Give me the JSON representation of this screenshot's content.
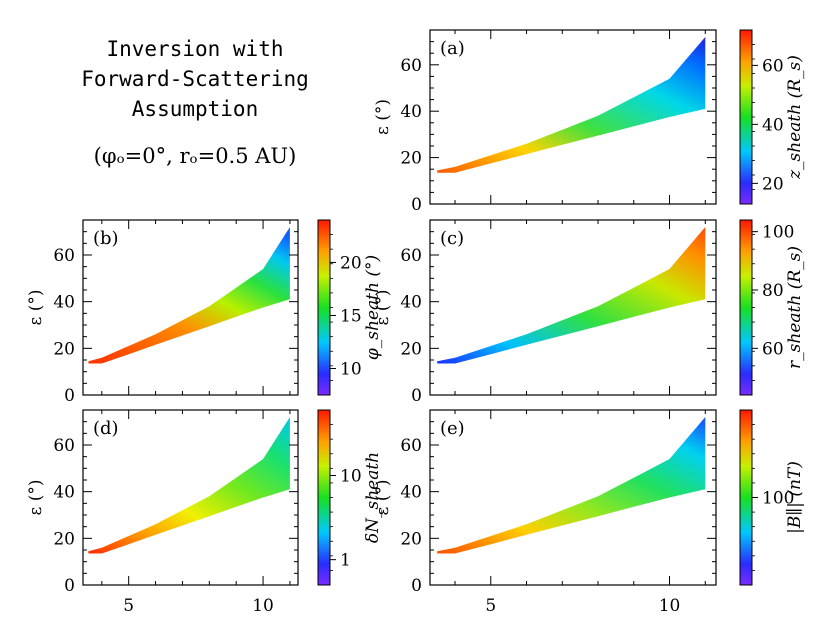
{
  "title": {
    "lines": [
      "Inversion with",
      "Forward-Scattering",
      "Assumption"
    ],
    "subtitle": "(φₒ=0°, rₒ=0.5 AU)"
  },
  "chart_data": [
    {
      "type": "heatmap",
      "panel_label": "(a)",
      "ylabel": "ε (°)",
      "x_range": [
        3.3,
        11.3
      ],
      "ylim": [
        0,
        75
      ],
      "yticks": [
        "0",
        "20",
        "40",
        "60"
      ],
      "xticks": [],
      "colorbar": {
        "label": "z_sheath (R_s)",
        "ticks": [
          "20",
          "40",
          "60"
        ],
        "tick_values": [
          20,
          40,
          60
        ],
        "range": [
          13,
          72
        ],
        "reversed": false
      },
      "region": {
        "x": [
          3.5,
          4.0,
          5,
          6,
          7,
          8,
          9,
          10,
          11
        ],
        "lower": [
          13.5,
          13.5,
          17.5,
          21.5,
          25.5,
          29.5,
          33.5,
          37.5,
          41
        ],
        "upper": [
          14.5,
          16,
          21,
          26,
          32,
          38,
          46,
          54,
          72
        ]
      },
      "color_trend": "orange at lower-left, green mid, cyan to blue toward upper-right"
    },
    {
      "type": "heatmap",
      "panel_label": "(b)",
      "ylabel": "ε (°)",
      "x_range": [
        3.3,
        11.3
      ],
      "ylim": [
        0,
        75
      ],
      "yticks": [
        "0",
        "20",
        "40",
        "60"
      ],
      "xticks": [],
      "colorbar": {
        "label": "φ_sheath (°)",
        "ticks": [
          "10",
          "15",
          "20"
        ],
        "tick_values": [
          10,
          15,
          20
        ],
        "range": [
          7.5,
          24
        ],
        "reversed": false
      },
      "region": {
        "x": [
          3.5,
          4.0,
          5,
          6,
          7,
          8,
          9,
          10,
          11
        ],
        "lower": [
          13.5,
          13.5,
          17.5,
          21.5,
          25.5,
          29.5,
          33.5,
          37.5,
          41
        ],
        "upper": [
          14.5,
          16,
          21,
          26,
          32,
          38,
          46,
          54,
          72
        ]
      },
      "color_trend": "red along the lower edge, green in the middle, blue at the upper-right tip"
    },
    {
      "type": "heatmap",
      "panel_label": "(c)",
      "ylabel": "ε (°)",
      "x_range": [
        3.3,
        11.3
      ],
      "ylim": [
        0,
        75
      ],
      "yticks": [
        "0",
        "20",
        "40",
        "60"
      ],
      "xticks": [],
      "colorbar": {
        "label": "r_sheath (R_s)",
        "ticks": [
          "60",
          "80",
          "100"
        ],
        "tick_values": [
          60,
          80,
          100
        ],
        "range": [
          44,
          104
        ],
        "reversed": false
      },
      "region": {
        "x": [
          3.5,
          4.0,
          5,
          6,
          7,
          8,
          9,
          10,
          11
        ],
        "lower": [
          13.5,
          13.5,
          17.5,
          21.5,
          25.5,
          29.5,
          33.5,
          37.5,
          41
        ],
        "upper": [
          14.5,
          16,
          21,
          26,
          32,
          38,
          46,
          54,
          72
        ]
      },
      "color_trend": "blue at lower-left, green mid, orange-red toward upper-right"
    },
    {
      "type": "heatmap",
      "panel_label": "(d)",
      "ylabel": "ε (°)",
      "x_range": [
        3.3,
        11.3
      ],
      "ylim": [
        0,
        75
      ],
      "yticks": [
        "0",
        "20",
        "40",
        "60"
      ],
      "xticks": [
        "5",
        "10"
      ],
      "colorbar": {
        "label": "δN_sheath",
        "ticks": [
          "1",
          "10"
        ],
        "tick_values": [
          1,
          10
        ],
        "range": [
          0.5,
          60
        ],
        "log": true,
        "reversed": false
      },
      "region": {
        "x": [
          3.5,
          4.0,
          5,
          6,
          7,
          8,
          9,
          10,
          11
        ],
        "lower": [
          13.5,
          13.5,
          17.5,
          21.5,
          25.5,
          29.5,
          33.5,
          37.5,
          41
        ],
        "upper": [
          14.5,
          16,
          21,
          26,
          32,
          38,
          46,
          54,
          72
        ]
      },
      "color_trend": "red at lower-left, yellow to green mid, cyan toward upper-right"
    },
    {
      "type": "heatmap",
      "panel_label": "(e)",
      "ylabel": "ε (°)",
      "x_range": [
        3.3,
        11.3
      ],
      "ylim": [
        0,
        75
      ],
      "yticks": [
        "0",
        "20",
        "40",
        "60"
      ],
      "xticks": [
        "5",
        "10"
      ],
      "colorbar": {
        "label": "|B∥| (nT)",
        "ticks": [
          "100"
        ],
        "tick_values": [
          100
        ],
        "range": [
          25,
          400
        ],
        "log": true,
        "reversed": false
      },
      "region": {
        "x": [
          3.5,
          4.0,
          5,
          6,
          7,
          8,
          9,
          10,
          11
        ],
        "lower": [
          13.5,
          13.5,
          17.5,
          21.5,
          25.5,
          29.5,
          33.5,
          37.5,
          41
        ],
        "upper": [
          14.5,
          16,
          21,
          26,
          32,
          38,
          46,
          54,
          72
        ]
      },
      "color_trend": "orange at lower-left, yellow-green mid, cyan to blue toward upper-right"
    }
  ]
}
